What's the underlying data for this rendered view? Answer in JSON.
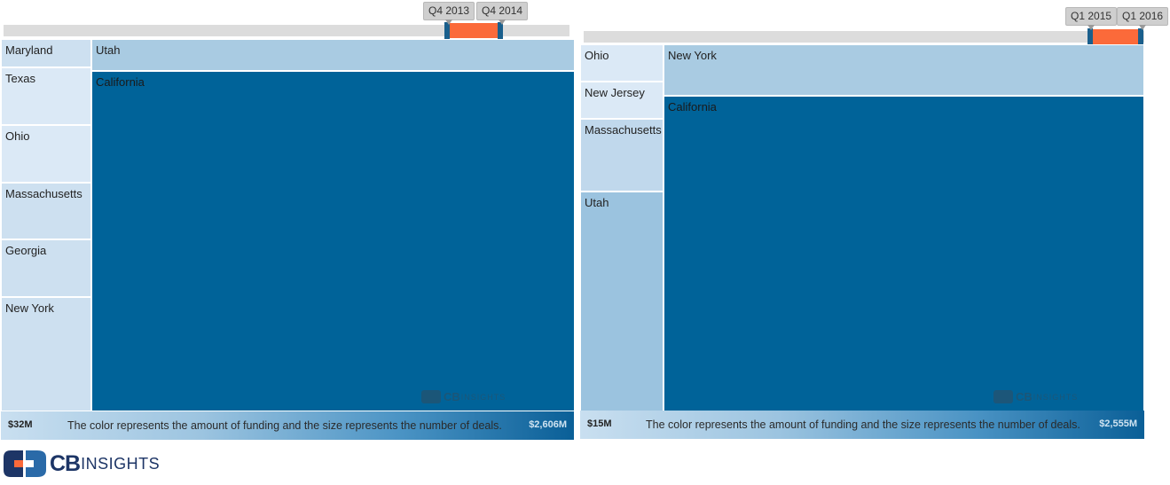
{
  "colors": {
    "lightest": "#dbe9f6",
    "light": "#cde0f0",
    "mid_light": "#c0d8ec",
    "mid": "#a9cbe2",
    "mid_dark": "#9bc3df",
    "dark": "#006399",
    "slider_range": "#fb6a3a",
    "slider_handle": "#1a5f8c"
  },
  "brand": {
    "cb": "CB",
    "insights": "INSIGHTS"
  },
  "chart_data": [
    {
      "type": "treemap",
      "slider": {
        "start_label": "Q4 2013",
        "end_label": "Q4 2014"
      },
      "legend": {
        "min_label": "$32M",
        "max_label": "$2,606M",
        "caption": "The color represents the amount of funding and the size represents the number of deals."
      },
      "tiles": [
        {
          "name": "Maryland",
          "shade": "light"
        },
        {
          "name": "Texas",
          "shade": "lightest"
        },
        {
          "name": "Ohio",
          "shade": "lightest"
        },
        {
          "name": "Massachusetts",
          "shade": "light"
        },
        {
          "name": "Georgia",
          "shade": "light"
        },
        {
          "name": "New York",
          "shade": "light"
        },
        {
          "name": "Utah",
          "shade": "mid"
        },
        {
          "name": "California",
          "shade": "dark"
        }
      ]
    },
    {
      "type": "treemap",
      "slider": {
        "start_label": "Q1 2015",
        "end_label": "Q1 2016"
      },
      "legend": {
        "min_label": "$15M",
        "max_label": "$2,555M",
        "caption": "The color represents the amount of funding and the size represents the number of deals."
      },
      "tiles": [
        {
          "name": "Ohio",
          "shade": "lightest"
        },
        {
          "name": "New Jersey",
          "shade": "lightest"
        },
        {
          "name": "Massachusetts",
          "shade": "mid_light"
        },
        {
          "name": "Utah",
          "shade": "mid_dark"
        },
        {
          "name": "New York",
          "shade": "mid"
        },
        {
          "name": "California",
          "shade": "dark"
        }
      ]
    }
  ]
}
